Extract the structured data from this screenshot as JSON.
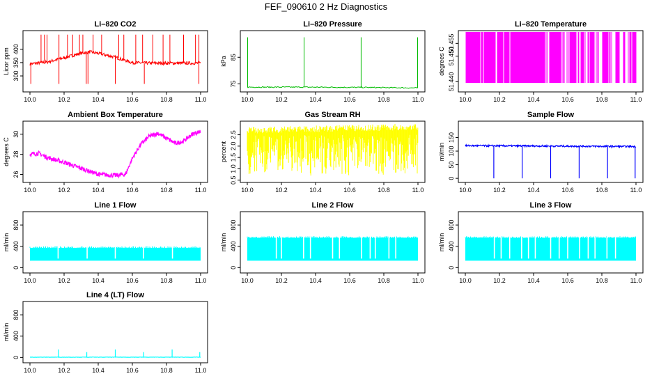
{
  "figure_title": "FEF_090610  2 Hz Diagnostics",
  "chart_data": [
    {
      "type": "line",
      "title": "Li–820 CO2",
      "ylabel": "Licor ppm",
      "color": "#ff0000",
      "xlim": [
        10.0,
        11.0
      ],
      "ylim": [
        240,
        470
      ],
      "xticks": [
        "10.0",
        "10.2",
        "10.4",
        "10.6",
        "10.8",
        "11.0"
      ],
      "yticks": [
        "300",
        "350",
        "400"
      ],
      "series": [
        {
          "name": "CO2",
          "x": [
            10.0,
            10.1,
            10.2,
            10.3,
            10.35,
            10.4,
            10.5,
            10.6,
            10.7,
            10.8,
            10.9,
            11.0
          ],
          "values": [
            345,
            352,
            368,
            385,
            390,
            385,
            370,
            350,
            348,
            348,
            348,
            348
          ]
        }
      ]
    },
    {
      "type": "line",
      "title": "Li–820 Pressure",
      "ylabel": "kPa",
      "color": "#00bb00",
      "xlim": [
        10.0,
        11.0
      ],
      "ylim": [
        72,
        95
      ],
      "xticks": [
        "10.0",
        "10.2",
        "10.4",
        "10.6",
        "10.8",
        "11.0"
      ],
      "yticks": [
        "75",
        "85"
      ],
      "series": [
        {
          "name": "Pressure",
          "x": [
            10.0,
            10.33,
            10.67,
            11.0
          ],
          "values": [
            73.8,
            73.8,
            73.7,
            73.5
          ]
        }
      ]
    },
    {
      "type": "line",
      "title": "Li–820 Temperature",
      "ylabel": "degrees C",
      "color": "#ff00ff",
      "xlim": [
        10.0,
        11.0
      ],
      "ylim": [
        51.436,
        51.46
      ],
      "xticks": [
        "10.0",
        "10.2",
        "10.4",
        "10.6",
        "10.8",
        "11.0"
      ],
      "yticks": [
        "51.440",
        "51.450",
        "51.455"
      ],
      "series": [
        {
          "name": "Temperature",
          "x": [
            10.0,
            11.0
          ],
          "values": [
            51.44,
            51.455
          ]
        }
      ]
    },
    {
      "type": "line",
      "title": "Ambient Box Temperature",
      "ylabel": "degrees C",
      "color": "#ff00ff",
      "xlim": [
        10.0,
        11.0
      ],
      "ylim": [
        25.2,
        31.3
      ],
      "xticks": [
        "10.0",
        "10.2",
        "10.4",
        "10.6",
        "10.8",
        "11.0"
      ],
      "yticks": [
        "26",
        "28",
        "30"
      ],
      "series": [
        {
          "name": "Box Temp",
          "x": [
            10.0,
            10.05,
            10.1,
            10.2,
            10.3,
            10.4,
            10.5,
            10.56,
            10.6,
            10.65,
            10.7,
            10.75,
            10.8,
            10.85,
            10.9,
            10.95,
            11.0
          ],
          "values": [
            28.0,
            28.1,
            27.7,
            27.2,
            26.6,
            26.0,
            25.9,
            26.0,
            27.6,
            29.0,
            29.8,
            30.1,
            29.6,
            29.1,
            29.3,
            30.0,
            30.3
          ]
        }
      ]
    },
    {
      "type": "line",
      "title": "Gas Stream RH",
      "ylabel": "percent",
      "color": "#ffff00",
      "xlim": [
        10.0,
        11.0
      ],
      "ylim": [
        0.4,
        3.1
      ],
      "xticks": [
        "10.0",
        "10.2",
        "10.4",
        "10.6",
        "10.8",
        "11.0"
      ],
      "yticks": [
        "0.5",
        "1.0",
        "1.5",
        "2.0",
        "2.5"
      ],
      "series": [
        {
          "name": "RH",
          "x": [
            10.0,
            11.0
          ],
          "values": [
            2.6,
            2.7
          ]
        }
      ]
    },
    {
      "type": "line",
      "title": "Sample Flow",
      "ylabel": "ml/min",
      "color": "#0000ff",
      "xlim": [
        10.0,
        11.0
      ],
      "ylim": [
        -15,
        210
      ],
      "xticks": [
        "10.0",
        "10.2",
        "10.4",
        "10.6",
        "10.8",
        "11.0"
      ],
      "yticks": [
        "0",
        "50",
        "100",
        "150"
      ],
      "series": [
        {
          "name": "Sample Flow",
          "x": [
            10.0,
            11.0
          ],
          "values": [
            120,
            117
          ]
        }
      ]
    },
    {
      "type": "line",
      "title": "Line 1 Flow",
      "ylabel": "ml/min",
      "color": "#00ffff",
      "xlim": [
        10.0,
        11.0
      ],
      "ylim": [
        -100,
        1050
      ],
      "xticks": [
        "10.0",
        "10.2",
        "10.4",
        "10.6",
        "10.8",
        "11.0"
      ],
      "yticks": [
        "0",
        "400",
        "800"
      ],
      "series": [
        {
          "name": "Line 1",
          "x": [
            10.0,
            11.0
          ],
          "values": [
            370,
            370
          ]
        }
      ]
    },
    {
      "type": "line",
      "title": "Line 2 Flow",
      "ylabel": "ml/min",
      "color": "#00ffff",
      "xlim": [
        10.0,
        11.0
      ],
      "ylim": [
        -100,
        1050
      ],
      "xticks": [
        "10.0",
        "10.2",
        "10.4",
        "10.6",
        "10.8",
        "11.0"
      ],
      "yticks": [
        "0",
        "400",
        "800"
      ],
      "series": [
        {
          "name": "Line 2",
          "x": [
            10.0,
            11.0
          ],
          "values": [
            560,
            560
          ]
        }
      ]
    },
    {
      "type": "line",
      "title": "Line 3 Flow",
      "ylabel": "ml/min",
      "color": "#00ffff",
      "xlim": [
        10.0,
        11.0
      ],
      "ylim": [
        -100,
        1050
      ],
      "xticks": [
        "10.0",
        "10.2",
        "10.4",
        "10.6",
        "10.8",
        "11.0"
      ],
      "yticks": [
        "0",
        "400",
        "800"
      ],
      "series": [
        {
          "name": "Line 3",
          "x": [
            10.0,
            11.0
          ],
          "values": [
            560,
            530
          ]
        }
      ]
    },
    {
      "type": "line",
      "title": "Line 4 (LT) Flow",
      "ylabel": "ml/min",
      "color": "#00ffff",
      "xlim": [
        10.0,
        11.0
      ],
      "ylim": [
        -100,
        1050
      ],
      "xticks": [
        "10.0",
        "10.2",
        "10.4",
        "10.6",
        "10.8",
        "11.0"
      ],
      "yticks": [
        "0",
        "400",
        "800"
      ],
      "series": [
        {
          "name": "Line 4 (LT)",
          "x": [
            10.0,
            11.0
          ],
          "values": [
            5,
            5
          ]
        }
      ]
    }
  ]
}
